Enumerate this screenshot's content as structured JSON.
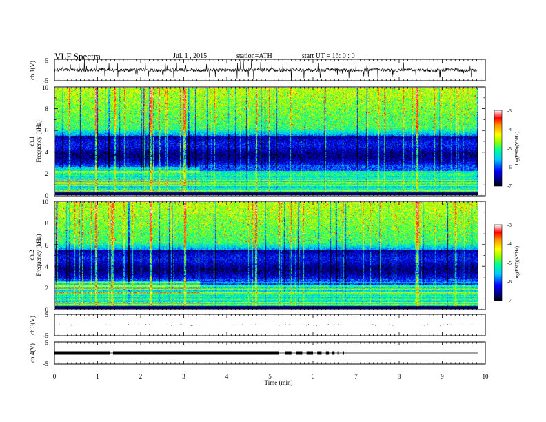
{
  "header": {
    "title": "VLF  Spectra",
    "date": "Jul.  1  , 2015",
    "station": "station=ATH",
    "start": "start  UT  =   16: 0  : 0"
  },
  "colors": {
    "colormap": [
      "#000000",
      "#00006e",
      "#0000ff",
      "#00c8ff",
      "#00ff96",
      "#96ff00",
      "#ffff00",
      "#ff9600",
      "#ff0000",
      "#ffffff"
    ]
  },
  "chart_data": [
    {
      "type": "line",
      "panel": "ch1-waveform",
      "ylabel": "ch.1(V)",
      "ylim": [
        -5,
        5
      ],
      "yticks": [
        "5",
        "-5"
      ],
      "xlim": [
        0,
        10
      ],
      "waveform": {
        "mean_V": 0,
        "noise_amplitude_V": 0.8,
        "spike_amplitude_V": 4.5
      }
    },
    {
      "type": "heatmap",
      "panel": "ch1-spectrogram",
      "ylabel": "ch.1\nFrequency  (kHz)",
      "ylim": [
        0,
        10
      ],
      "yticks": [
        "0",
        "2",
        "4",
        "6",
        "8",
        "10"
      ],
      "xlim": [
        0,
        9.8
      ],
      "colorbar": {
        "label": "log(PSD)(V²/Hz)",
        "range": [
          -7,
          -3
        ],
        "ticks": [
          "-3",
          "-4",
          "-5",
          "-6",
          "-7"
        ]
      },
      "structure": {
        "low_band_kHz": [
          0,
          2.5
        ],
        "dark_band_kHz": [
          2.5,
          6
        ],
        "upper_band_kHz": [
          6,
          10
        ],
        "transition_time_min": 3.35,
        "strong_event_min": [
          0.95,
          2.2,
          3.0,
          4.65,
          8.4
        ]
      }
    },
    {
      "type": "heatmap",
      "panel": "ch2-spectrogram",
      "ylabel": "ch.2\nFrequency  (kHz)",
      "ylim": [
        0,
        10
      ],
      "yticks": [
        "0",
        "2",
        "4",
        "6",
        "8",
        "10"
      ],
      "xlim": [
        0,
        9.8
      ],
      "colorbar": {
        "label": "log(PSD)(V²/Hz)",
        "range": [
          -7,
          -3
        ],
        "ticks": [
          "-3",
          "-4",
          "-5",
          "-6",
          "-7"
        ]
      },
      "structure": {
        "low_band_kHz": [
          0,
          2.5
        ],
        "dark_band_kHz": [
          2.5,
          6
        ],
        "upper_band_kHz": [
          6,
          10
        ],
        "transition_time_min": 3.35,
        "strong_event_min": [
          0.95,
          2.2,
          3.0,
          4.65,
          8.4
        ]
      }
    },
    {
      "type": "line",
      "panel": "ch3-waveform",
      "ylabel": "ch.3(V)",
      "ylim": [
        -5,
        5
      ],
      "yticks": [
        "5",
        "-5"
      ],
      "xlim": [
        0,
        10
      ],
      "waveform": {
        "mean_V": 0,
        "noise_amplitude_V": 0.05,
        "spike_amplitude_V": 0.3
      }
    },
    {
      "type": "line",
      "panel": "ch4-waveform",
      "ylabel": "ch.4(V)",
      "ylim": [
        -5,
        5
      ],
      "yticks": [
        "5",
        "-5"
      ],
      "xlim": [
        0,
        10
      ],
      "xlabel": "Time  (min)",
      "xticks": [
        "0",
        "1",
        "2",
        "3",
        "4",
        "5",
        "6",
        "7",
        "8",
        "9",
        "10"
      ],
      "waveform": {
        "mean_V": 0
      },
      "thick_segments_min": [
        [
          0,
          1.28
        ],
        [
          1.36,
          5.2
        ],
        [
          5.35,
          5.5
        ],
        [
          5.6,
          5.75
        ],
        [
          5.85,
          6.0
        ],
        [
          6.1,
          6.2
        ],
        [
          6.3,
          6.37
        ],
        [
          6.45,
          6.5
        ],
        [
          6.57,
          6.6
        ],
        [
          6.7,
          6.72
        ]
      ]
    }
  ]
}
